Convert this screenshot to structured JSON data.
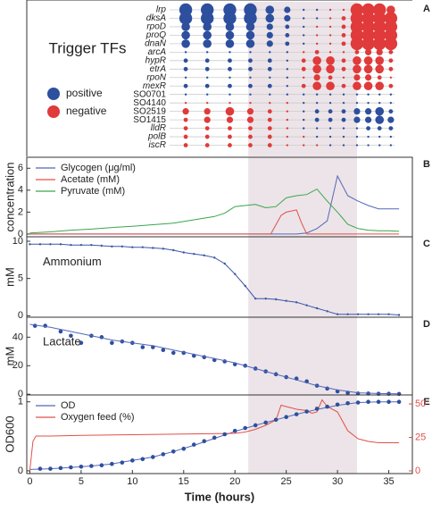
{
  "chart_data": [
    {
      "type": "dotmatrix",
      "title": "Trigger TFs",
      "panel_label": "A",
      "categories": [
        "lrp",
        "dksA",
        "rpoD",
        "proQ",
        "dnaN",
        "arcA",
        "hypR",
        "etrA",
        "rpoN",
        "mexR",
        "SO0701",
        "SO4140",
        "SO2519",
        "SO1415",
        "lldR",
        "polB",
        "iscR"
      ],
      "x": [
        15.2,
        17.3,
        19.5,
        21.5,
        23.4,
        25.1,
        26.7,
        28,
        29.3,
        30.6,
        31.9,
        33,
        34.1,
        35.2
      ],
      "values": [
        [
          3,
          3,
          3,
          3,
          2,
          1.5,
          0.5,
          0.5,
          -0.5,
          -0.5,
          -3,
          -3,
          -3,
          -2
        ],
        [
          3,
          3,
          3,
          3,
          2,
          1.5,
          0.5,
          0.5,
          -0.5,
          -1,
          -3,
          -3,
          -3,
          -3
        ],
        [
          2,
          2,
          2,
          2,
          1.5,
          1,
          0.5,
          -0.5,
          -0.5,
          -1,
          -3,
          -3,
          -3,
          -3
        ],
        [
          2,
          2,
          2,
          2,
          1.5,
          1,
          0.5,
          -0.5,
          -0.5,
          -1,
          -3,
          -3,
          -3,
          -3
        ],
        [
          2,
          2,
          2,
          2,
          1.5,
          1,
          0.5,
          -0.5,
          -0.5,
          -1,
          -3,
          -3,
          -3,
          -3
        ],
        [
          0.5,
          0.5,
          0.5,
          0.5,
          0.5,
          0.5,
          -0.5,
          -1,
          -0.5,
          -0.5,
          -1,
          -1.5,
          -1.5,
          -1
        ],
        [
          1,
          1,
          1,
          1,
          1,
          0.5,
          -1,
          -2,
          -2,
          -1,
          -2,
          -2,
          -2,
          -1
        ],
        [
          1,
          1,
          1,
          1,
          1,
          0.5,
          -1,
          -2,
          -2,
          -1,
          -2,
          -2,
          -2,
          -1
        ],
        [
          0.5,
          0.5,
          0.5,
          0.5,
          0.5,
          0.5,
          -0.5,
          -1.5,
          -1,
          -0.5,
          -1.5,
          -1.5,
          -1,
          -0.5
        ],
        [
          1,
          1,
          1,
          1,
          1,
          0.5,
          -1,
          -2,
          -2,
          -1,
          -2,
          -2,
          -2,
          -1
        ],
        [
          0.5,
          0.5,
          0.5,
          0.5,
          0.5,
          0.5,
          0.5,
          0.5,
          0.5,
          0.5,
          0.5,
          0.5,
          0.5,
          0.5
        ],
        [
          -0.5,
          -0.5,
          -0.5,
          -0.5,
          -0.5,
          -0.5,
          0.5,
          0.5,
          0.5,
          0.5,
          0.5,
          0.5,
          0.5,
          0.5
        ],
        [
          -1.5,
          -1.5,
          -2,
          -1.5,
          -1,
          -0.5,
          0.5,
          1,
          1,
          1,
          1.5,
          1.5,
          2,
          1
        ],
        [
          -1,
          -1.5,
          -1.5,
          -1.5,
          -1,
          -0.5,
          0.5,
          1,
          1,
          1,
          1.5,
          1.5,
          2,
          1.5
        ],
        [
          -1,
          -1,
          -1,
          -1,
          -1,
          -0.5,
          0.5,
          0.5,
          0.5,
          0.5,
          0.5,
          1,
          1,
          1
        ],
        [
          -1,
          -1,
          -1,
          -1,
          -1,
          -0.5,
          -0.5,
          0.5,
          0.5,
          0.5,
          0.5,
          0.5,
          0.5,
          0.5
        ],
        [
          -1,
          -1,
          -1,
          -1,
          -1,
          -0.5,
          -0.5,
          -0.5,
          0.5,
          0.5,
          0.5,
          0.5,
          0.5,
          0.5
        ]
      ],
      "legend": [
        {
          "name": "positive",
          "color": "#2d4f9e"
        },
        {
          "name": "negative",
          "color": "#e03a3a"
        }
      ],
      "xlim": [
        -0.3,
        37.3
      ],
      "shade": [
        21.3,
        31.9
      ]
    },
    {
      "type": "line",
      "panel_label": "B",
      "ylabel": "concentration",
      "xlim": [
        -0.3,
        37.3
      ],
      "ylim": [
        -0.25,
        7
      ],
      "yticks": [
        0,
        2,
        4,
        6
      ],
      "shade": [
        21.3,
        31.9
      ],
      "legend": "upper left",
      "series": [
        {
          "name": "Glycogen (μg/ml)",
          "color": "#5566b8",
          "x": [
            0,
            5,
            10,
            15,
            20,
            24,
            26,
            27,
            28,
            29,
            30,
            31,
            32,
            33,
            34,
            35,
            36
          ],
          "values": [
            0,
            0,
            0,
            0,
            0,
            0,
            0,
            0.1,
            0.5,
            1.2,
            5.3,
            3.5,
            3.0,
            2.6,
            2.3,
            2.3,
            2.3
          ]
        },
        {
          "name": "Acetate (mM)",
          "color": "#e0504a",
          "x": [
            0,
            10,
            20,
            23.5,
            24.5,
            25,
            26,
            26.5,
            27,
            30,
            36
          ],
          "values": [
            0,
            0,
            0,
            0,
            1.7,
            2.0,
            2.2,
            1.0,
            0,
            0,
            0
          ]
        },
        {
          "name": "Pyruvate (mM)",
          "color": "#3aa64a",
          "x": [
            0,
            2,
            4,
            6,
            8,
            10,
            12,
            14,
            16,
            18,
            19,
            20,
            21,
            22,
            23,
            24,
            25,
            26,
            27,
            28,
            29,
            30,
            31,
            32,
            33,
            34,
            35,
            36
          ],
          "values": [
            0.1,
            0.2,
            0.35,
            0.45,
            0.6,
            0.7,
            0.85,
            1.0,
            1.3,
            1.6,
            1.9,
            2.5,
            2.6,
            2.7,
            2.4,
            2.5,
            3.3,
            3.5,
            3.6,
            4.1,
            3.0,
            2.0,
            0.9,
            0.5,
            0.35,
            0.3,
            0.3,
            0.25
          ]
        }
      ]
    },
    {
      "type": "line",
      "panel_label": "C",
      "ylabel": "mM",
      "annotation": "Ammonium",
      "xlim": [
        -0.3,
        37.3
      ],
      "ylim": [
        -0.2,
        10.6
      ],
      "yticks": [
        0,
        5,
        10
      ],
      "shade": [
        21.3,
        31.9
      ],
      "series": [
        {
          "color": "#3b57a8",
          "marker": true,
          "x": [
            0,
            1,
            2,
            3,
            4,
            5,
            6,
            7,
            8,
            9,
            10,
            11,
            12,
            13,
            14,
            15,
            16,
            17,
            18,
            19,
            20,
            21,
            22,
            23,
            24,
            25,
            26,
            27,
            28,
            29,
            30,
            31,
            32,
            33,
            34,
            35,
            36
          ],
          "values": [
            9.6,
            9.6,
            9.6,
            9.6,
            9.5,
            9.5,
            9.5,
            9.4,
            9.3,
            9.3,
            9.2,
            9.2,
            9.1,
            9.0,
            8.8,
            8.5,
            8.3,
            8.1,
            7.8,
            7.0,
            5.6,
            4.0,
            2.3,
            2.3,
            2.2,
            2.0,
            1.8,
            1.4,
            1.0,
            0.6,
            0.2,
            0.2,
            0.2,
            0.2,
            0.2,
            0.2,
            0.1
          ]
        }
      ]
    },
    {
      "type": "line",
      "panel_label": "D",
      "ylabel": "mM",
      "annotation": "Lactate",
      "xlim": [
        -0.3,
        37.3
      ],
      "ylim": [
        -0.5,
        54
      ],
      "yticks": [
        0,
        20,
        40
      ],
      "shade": [
        21.3,
        31.9
      ],
      "series": [
        {
          "color": "#2d4f9e",
          "marker": true,
          "line": false,
          "x": [
            0.5,
            1.5,
            3,
            4,
            5,
            6,
            7,
            8,
            9,
            10,
            11,
            12,
            13,
            14,
            15,
            16,
            17,
            18,
            19,
            20,
            21,
            22,
            23,
            24,
            25,
            26,
            27,
            28,
            29,
            30,
            31,
            32,
            33,
            34,
            35,
            36
          ],
          "values": [
            48,
            48,
            44,
            41,
            36,
            41,
            40,
            36,
            37,
            36,
            33,
            33,
            31,
            29,
            29,
            27,
            26,
            24,
            23,
            21,
            20,
            18,
            16,
            14,
            12,
            11,
            9,
            6,
            4,
            2,
            1,
            0.5,
            0.5,
            0.3,
            0.3,
            0.2
          ]
        },
        {
          "color": "#5566b8",
          "x": [
            0,
            2,
            4,
            6,
            8,
            10,
            12,
            14,
            16,
            18,
            20,
            22,
            24,
            26,
            28,
            30,
            32,
            34,
            36
          ],
          "values": [
            49,
            47,
            44,
            41,
            38,
            36,
            34,
            31,
            28,
            25,
            22,
            18,
            14,
            10,
            6,
            3,
            1,
            0.5,
            0.3
          ]
        }
      ]
    },
    {
      "type": "line",
      "panel_label": "E",
      "ylabel": "OD600",
      "xlabel": "Time (hours)",
      "xlim": [
        -0.3,
        37.3
      ],
      "ylim": [
        -0.04,
        1.1
      ],
      "yticks": [
        0,
        1
      ],
      "y2lim": [
        -2,
        56.7
      ],
      "y2ticks": [
        0,
        25,
        50
      ],
      "xticks": [
        0,
        5,
        10,
        15,
        20,
        25,
        30,
        35
      ],
      "shade": [
        21.3,
        31.9
      ],
      "legend": "upper left",
      "series": [
        {
          "name": "OD",
          "color": "#5566b8",
          "x": [
            0,
            2,
            4,
            6,
            8,
            10,
            12,
            14,
            16,
            18,
            20,
            22,
            24,
            26,
            28,
            30,
            32,
            34,
            36
          ],
          "values": [
            0.02,
            0.03,
            0.05,
            0.07,
            0.1,
            0.15,
            0.2,
            0.28,
            0.37,
            0.47,
            0.57,
            0.66,
            0.74,
            0.82,
            0.89,
            0.95,
            0.99,
            1.0,
            1.0
          ]
        },
        {
          "name": "Oxygen feed (%)",
          "color": "#e0504a",
          "axis": "y2",
          "x": [
            0,
            0.3,
            0.6,
            2,
            5,
            10,
            15,
            20,
            21,
            22,
            23,
            24,
            24.5,
            25,
            26,
            27,
            27.5,
            28,
            28.5,
            29,
            30,
            31,
            32,
            33,
            34,
            36
          ],
          "values": [
            0,
            22,
            26,
            26,
            26.5,
            27,
            27.5,
            28,
            29,
            31,
            34,
            38,
            49,
            48,
            46,
            45,
            43,
            44,
            53,
            48,
            44,
            30,
            24,
            22,
            21,
            21
          ]
        },
        {
          "color": "#2d4f9e",
          "marker": true,
          "line": false,
          "x": [
            1,
            2,
            3,
            4,
            5,
            6,
            7,
            8,
            9,
            10,
            11,
            12,
            13,
            14,
            15,
            16,
            17,
            18,
            19,
            20,
            21,
            22,
            23,
            24,
            25,
            26,
            27,
            28,
            29,
            30,
            31,
            32,
            33,
            34,
            35,
            36
          ],
          "values": [
            0.03,
            0.03,
            0.04,
            0.05,
            0.06,
            0.07,
            0.08,
            0.1,
            0.12,
            0.15,
            0.17,
            0.2,
            0.24,
            0.28,
            0.32,
            0.38,
            0.43,
            0.48,
            0.53,
            0.58,
            0.62,
            0.66,
            0.7,
            0.74,
            0.78,
            0.82,
            0.86,
            0.9,
            0.93,
            0.96,
            0.98,
            0.99,
            1.0,
            1.0,
            1.0,
            1.0
          ]
        }
      ]
    }
  ]
}
